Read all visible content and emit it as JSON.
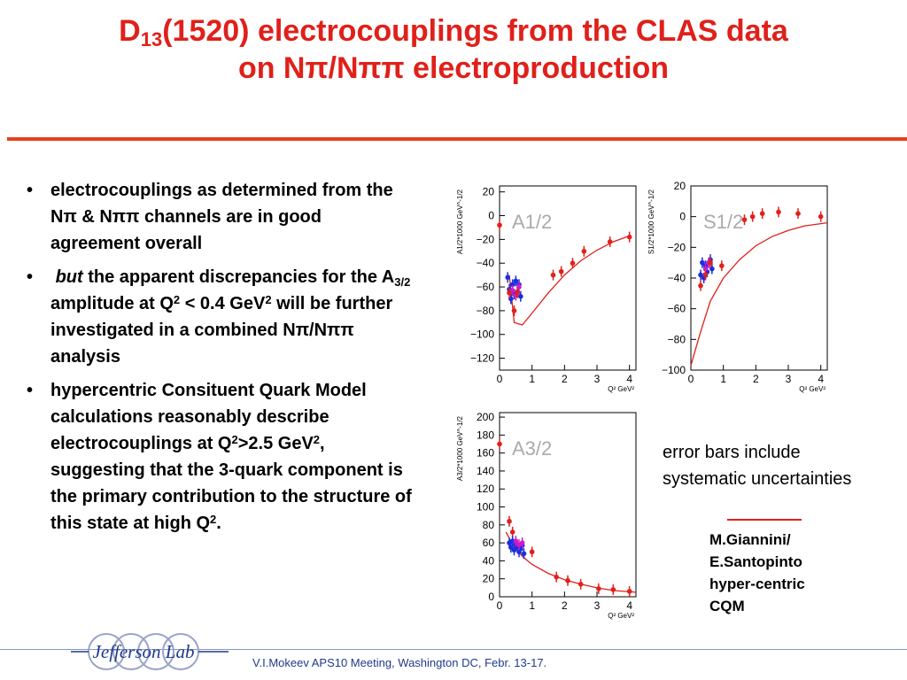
{
  "slide": {
    "title_line1_a": "D",
    "title_line1_sub": "13",
    "title_line1_b": "(1520) electrocouplings from the CLAS data",
    "title_line2": "on Nπ/Nππ electroproduction",
    "colors": {
      "title": "#e0201a",
      "rule": "#e8401c",
      "footer_text": "#203a8c"
    }
  },
  "bullets": {
    "b1": "electrocouplings as determined from the Nπ & Nππ channels are in good agreement overall",
    "b2_em": "but",
    "b2_a": " the apparent discrepancies for the A",
    "b2_sub": "3/2",
    "b2_b": " amplitude at Q",
    "b2_sup1": "2",
    "b2_c": " < 0.4 GeV",
    "b2_sup2": "2",
    "b2_d": " will be further investigated in a  combined Nπ/Nππ analysis",
    "b3_a": "hypercentric Consituent Quark Model calculations reasonably describe electrocouplings at Q",
    "b3_sup1": "2",
    "b3_b": ">2.5 GeV",
    "b3_sup2": "2",
    "b3_c": ", suggesting that the 3-quark component is the primary contribution to the structure of this state at high Q",
    "b3_sup3": "2",
    "b3_d": "."
  },
  "note": {
    "line1": "error bars include",
    "line2": "systematic uncertainties"
  },
  "legend": {
    "line1": "M.Giannini/",
    "line2": "E.Santopinto",
    "line3": "hyper-centric",
    "line4": "CQM"
  },
  "footer": {
    "text": "V.I.Mokeev   APS10 Meeting, Washington DC, Febr. 13-17."
  },
  "logo": {
    "text": "Jefferson Lab"
  },
  "chart_data": [
    {
      "type": "scatter",
      "label": "A1/2",
      "ylabel": "A1/2*1000 GeV^-1/2",
      "xlabel": "Q² GeV²",
      "xlim": [
        0,
        4.2
      ],
      "ylim": [
        -130,
        25
      ],
      "xticks": [
        0,
        1,
        2,
        3,
        4
      ],
      "yticks": [
        20,
        0,
        -20,
        -40,
        -60,
        -80,
        -100,
        -120
      ],
      "series": [
        {
          "color": "#e0201a",
          "points": [
            [
              1.65,
              -50
            ],
            [
              1.9,
              -47
            ],
            [
              2.25,
              -40
            ],
            [
              2.6,
              -30
            ],
            [
              3.4,
              -22
            ],
            [
              4.0,
              -18
            ]
          ]
        },
        {
          "color": "#1a2ee0",
          "points": [
            [
              0.25,
              -52
            ],
            [
              0.3,
              -62
            ],
            [
              0.35,
              -70
            ],
            [
              0.4,
              -58
            ],
            [
              0.45,
              -66
            ],
            [
              0.5,
              -55
            ],
            [
              0.55,
              -64
            ],
            [
              0.6,
              -58
            ],
            [
              0.65,
              -68
            ]
          ]
        },
        {
          "color": "#d01ac8",
          "points": [
            [
              0.4,
              -63
            ],
            [
              0.5,
              -67
            ],
            [
              0.6,
              -60
            ]
          ]
        },
        {
          "color": "#e0201a",
          "points": [
            [
              0.0,
              -8
            ],
            [
              0.3,
              -65
            ],
            [
              0.45,
              -80
            ],
            [
              0.55,
              -65
            ]
          ]
        }
      ],
      "curve": [
        [
          0.3,
          -50
        ],
        [
          0.45,
          -90
        ],
        [
          0.7,
          -92
        ],
        [
          1.0,
          -82
        ],
        [
          1.5,
          -65
        ],
        [
          2.0,
          -50
        ],
        [
          2.5,
          -38
        ],
        [
          3.0,
          -29
        ],
        [
          3.5,
          -22
        ],
        [
          4.0,
          -17
        ]
      ]
    },
    {
      "type": "scatter",
      "label": "S1/2",
      "ylabel": "S1/2*1000 GeV^-1/2",
      "xlabel": "Q² GeV²",
      "xlim": [
        0,
        4.2
      ],
      "ylim": [
        -100,
        20
      ],
      "xticks": [
        0,
        1,
        2,
        3,
        4
      ],
      "yticks": [
        20,
        0,
        -20,
        -40,
        -60,
        -80,
        -100
      ],
      "series": [
        {
          "color": "#e0201a",
          "points": [
            [
              1.65,
              -2
            ],
            [
              1.9,
              0
            ],
            [
              2.2,
              2
            ],
            [
              2.7,
              3
            ],
            [
              3.3,
              2
            ],
            [
              4.0,
              0
            ]
          ]
        },
        {
          "color": "#1a2ee0",
          "points": [
            [
              0.3,
              -38
            ],
            [
              0.35,
              -30
            ],
            [
              0.4,
              -40
            ],
            [
              0.45,
              -32
            ],
            [
              0.5,
              -36
            ],
            [
              0.55,
              -30
            ],
            [
              0.6,
              -28
            ],
            [
              0.65,
              -34
            ]
          ]
        },
        {
          "color": "#d01ac8",
          "points": [
            [
              0.45,
              -34
            ],
            [
              0.55,
              -30
            ]
          ]
        },
        {
          "color": "#e0201a",
          "points": [
            [
              0.3,
              -45
            ],
            [
              0.45,
              -38
            ],
            [
              0.6,
              -30
            ],
            [
              0.95,
              -32
            ]
          ]
        }
      ],
      "curve": [
        [
          0.0,
          -97
        ],
        [
          0.3,
          -75
        ],
        [
          0.6,
          -55
        ],
        [
          1.0,
          -40
        ],
        [
          1.5,
          -28
        ],
        [
          2.0,
          -19
        ],
        [
          2.5,
          -13
        ],
        [
          3.0,
          -9
        ],
        [
          3.5,
          -6
        ],
        [
          4.2,
          -4
        ]
      ]
    },
    {
      "type": "scatter",
      "label": "A3/2",
      "ylabel": "A3/2*1000 GeV^-1/2",
      "xlabel": "Q² GeV²",
      "xlim": [
        0,
        4.2
      ],
      "ylim": [
        0,
        205
      ],
      "xticks": [
        0,
        1,
        2,
        3,
        4
      ],
      "yticks": [
        200,
        180,
        160,
        140,
        120,
        100,
        80,
        60,
        40,
        20,
        0
      ],
      "series": [
        {
          "color": "#e0201a",
          "points": [
            [
              0.3,
              84
            ],
            [
              0.4,
              72
            ],
            [
              1.0,
              50
            ],
            [
              1.75,
              22
            ],
            [
              2.1,
              18
            ],
            [
              2.5,
              14
            ],
            [
              3.05,
              9
            ],
            [
              3.5,
              8
            ],
            [
              4.0,
              6
            ]
          ]
        },
        {
          "color": "#1a2ee0",
          "points": [
            [
              0.3,
              60
            ],
            [
              0.35,
              55
            ],
            [
              0.4,
              62
            ],
            [
              0.45,
              52
            ],
            [
              0.5,
              58
            ],
            [
              0.55,
              56
            ],
            [
              0.6,
              50
            ],
            [
              0.65,
              54
            ],
            [
              0.7,
              57
            ],
            [
              0.75,
              48
            ]
          ]
        },
        {
          "color": "#d01ac8",
          "points": [
            [
              0.5,
              62
            ],
            [
              0.6,
              58
            ],
            [
              0.7,
              60
            ]
          ]
        },
        {
          "color": "#e0201a",
          "points": [
            [
              0.0,
              170
            ]
          ]
        }
      ],
      "curve": [
        [
          0.2,
          72
        ],
        [
          0.4,
          58
        ],
        [
          0.7,
          45
        ],
        [
          1.0,
          36
        ],
        [
          1.5,
          26
        ],
        [
          2.0,
          19
        ],
        [
          2.5,
          14
        ],
        [
          3.0,
          10
        ],
        [
          3.5,
          7
        ],
        [
          4.2,
          5
        ]
      ]
    }
  ]
}
